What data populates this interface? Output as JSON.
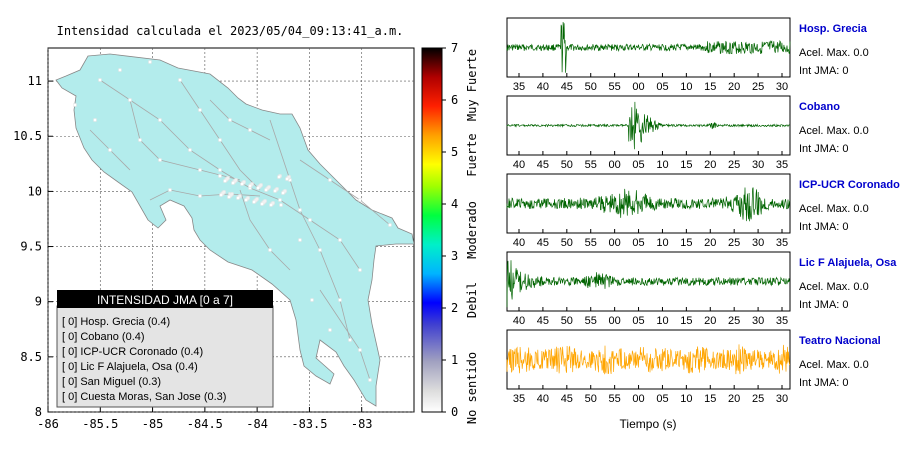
{
  "title": "Intensidad calculada el 2023/05/04_09:13:41_a.m.",
  "chart_data": [
    {
      "type": "map",
      "x_ticks": [
        "-86",
        "-85.5",
        "-85",
        "-84.5",
        "-84",
        "-83.5",
        "-83"
      ],
      "y_ticks": [
        "11",
        "10.5",
        "10",
        "9.5",
        "9",
        "8.5",
        "8"
      ],
      "xlim": [
        -86,
        -82.5
      ],
      "ylim": [
        8,
        11.3
      ],
      "grid": true
    },
    {
      "type": "colorbar",
      "range": [
        0,
        7
      ],
      "ticks": [
        "0",
        "1",
        "2",
        "3",
        "4",
        "5",
        "6",
        "7"
      ],
      "categories": [
        "No sentido",
        "Debil",
        "Moderado",
        "Fuerte",
        "Muy Fuerte"
      ],
      "colors": [
        "#ffffff",
        "#b0b0b0",
        "#4040c8",
        "#0000ff",
        "#00c8ff",
        "#00ff80",
        "#60ff00",
        "#ffff00",
        "#ff8000",
        "#ff0000",
        "#800000",
        "#000000"
      ]
    },
    {
      "type": "line",
      "xlabel": "Tiempo (s)",
      "series": [
        {
          "name": "Hosp. Grecia",
          "accel": "Acel. Max. 0.0",
          "jma": "Int JMA: 0",
          "color": "#006400",
          "ticks": [
            "35",
            "40",
            "45",
            "50",
            "55",
            "00",
            "05",
            "10",
            "15",
            "20",
            "25",
            "30"
          ]
        },
        {
          "name": "Cobano",
          "accel": "Acel. Max. 0.0",
          "jma": "Int JMA: 0",
          "color": "#006400",
          "ticks": [
            "40",
            "45",
            "50",
            "55",
            "00",
            "05",
            "10",
            "15",
            "20",
            "25",
            "30",
            "35"
          ]
        },
        {
          "name": "ICP-UCR Coronado",
          "accel": "Acel. Max. 0.0",
          "jma": "Int JMA: 0",
          "color": "#006400",
          "ticks": [
            "40",
            "45",
            "50",
            "55",
            "00",
            "05",
            "10",
            "15",
            "20",
            "25",
            "30",
            "35"
          ]
        },
        {
          "name": "Lic F Alajuela, Osa",
          "accel": "Acel. Max. 0.0",
          "jma": "Int JMA: 0",
          "color": "#006400",
          "ticks": [
            "40",
            "45",
            "50",
            "55",
            "00",
            "05",
            "10",
            "15",
            "20",
            "25",
            "30",
            "35"
          ]
        },
        {
          "name": "Teatro Nacional",
          "accel": "Acel. Max. 0.0",
          "jma": "Int JMA: 0",
          "color": "#ffa500",
          "ticks": [
            "35",
            "40",
            "45",
            "50",
            "55",
            "00",
            "05",
            "10",
            "15",
            "20",
            "25",
            "30"
          ]
        }
      ]
    }
  ],
  "legend": {
    "title": "INTENSIDAD JMA [0 a 7]",
    "items": [
      "[ 0]  Hosp. Grecia (0.4)",
      "[ 0]  Cobano (0.4)",
      "[ 0]  ICP-UCR Coronado (0.4)",
      "[ 0]  Lic F Alajuela, Osa (0.4)",
      "[ 0]  San Miguel (0.3)",
      "[ 0]  Cuesta Moras, San Jose (0.3)"
    ]
  }
}
